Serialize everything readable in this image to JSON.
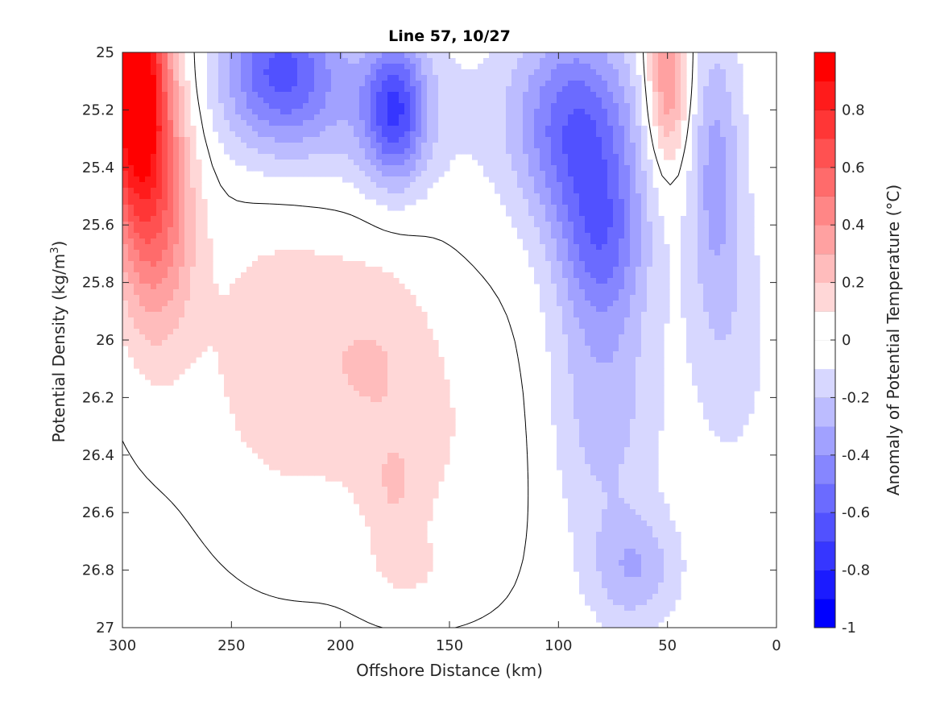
{
  "chart_data": {
    "type": "heatmap",
    "title": "Line 57, 10/27",
    "xlabel": "Offshore Distance (km)",
    "ylabel_main": "Potential Density (kg/m",
    "ylabel_sup": "3",
    "ylabel_close": ")",
    "colorbar_label": "Anomaly of Potential Temperature (°C)",
    "xlim": [
      300,
      0
    ],
    "ylim": [
      25,
      27
    ],
    "x_ticks": [
      "300",
      "250",
      "200",
      "150",
      "100",
      "50",
      "0"
    ],
    "x_tick_values": [
      300,
      250,
      200,
      150,
      100,
      50,
      0
    ],
    "y_ticks": [
      "25",
      "25.2",
      "25.4",
      "25.6",
      "25.8",
      "26",
      "26.2",
      "26.4",
      "26.6",
      "26.8",
      "27"
    ],
    "y_tick_values": [
      25,
      25.2,
      25.4,
      25.6,
      25.8,
      26,
      26.2,
      26.4,
      26.6,
      26.8,
      27
    ],
    "colorbar_ticks": [
      "0.8",
      "0.6",
      "0.4",
      "0.2",
      "0",
      "-0.2",
      "-0.4",
      "-0.6",
      "-0.8",
      "-1"
    ],
    "colorbar_tick_values": [
      0.8,
      0.6,
      0.4,
      0.2,
      0,
      -0.2,
      -0.4,
      -0.6,
      -0.8,
      -1
    ],
    "clim": [
      -1,
      1
    ],
    "levels": [
      -1,
      -0.9,
      -0.8,
      -0.7,
      -0.6,
      -0.5,
      -0.4,
      -0.3,
      -0.2,
      -0.1,
      0,
      0.1,
      0.2,
      0.3,
      0.4,
      0.5,
      0.6,
      0.7,
      0.8,
      0.9,
      1
    ],
    "colormap": "blue-white-red",
    "zero_contour_color": "#000000",
    "anomaly_features": [
      {
        "x": 295,
        "y": 25.05,
        "sx": 14,
        "sy": 0.45,
        "amp": 1.05
      },
      {
        "x": 285,
        "y": 25.5,
        "sx": 18,
        "sy": 0.5,
        "amp": 0.55
      },
      {
        "x": 225,
        "y": 26.05,
        "sx": 40,
        "sy": 0.55,
        "amp": 0.2
      },
      {
        "x": 180,
        "y": 26.05,
        "sx": 25,
        "sy": 0.4,
        "amp": 0.12
      },
      {
        "x": 150,
        "y": 26.35,
        "sx": 45,
        "sy": 0.5,
        "amp": 0.1
      },
      {
        "x": 175,
        "y": 26.55,
        "sx": 14,
        "sy": 0.2,
        "amp": 0.12
      },
      {
        "x": 170,
        "y": 26.8,
        "sx": 18,
        "sy": 0.12,
        "amp": 0.1
      },
      {
        "x": 228,
        "y": 25.05,
        "sx": 25,
        "sy": 0.25,
        "amp": -0.5
      },
      {
        "x": 175,
        "y": 25.2,
        "sx": 14,
        "sy": 0.25,
        "amp": -0.55
      },
      {
        "x": 200,
        "y": 25.2,
        "sx": 60,
        "sy": 0.3,
        "amp": -0.2
      },
      {
        "x": 92,
        "y": 25.25,
        "sx": 28,
        "sy": 0.35,
        "amp": -0.55
      },
      {
        "x": 80,
        "y": 25.65,
        "sx": 20,
        "sy": 0.3,
        "amp": -0.4
      },
      {
        "x": 80,
        "y": 26.2,
        "sx": 25,
        "sy": 0.5,
        "amp": -0.25
      },
      {
        "x": 65,
        "y": 26.8,
        "sx": 20,
        "sy": 0.2,
        "amp": -0.25
      },
      {
        "x": 50,
        "y": 25.1,
        "sx": 10,
        "sy": 0.3,
        "amp": 0.45
      },
      {
        "x": 28,
        "y": 25.4,
        "sx": 12,
        "sy": 0.5,
        "amp": -0.3
      },
      {
        "x": 20,
        "y": 26.0,
        "sx": 20,
        "sy": 0.5,
        "amp": -0.12
      }
    ],
    "anomaly_baseline": -0.02
  }
}
